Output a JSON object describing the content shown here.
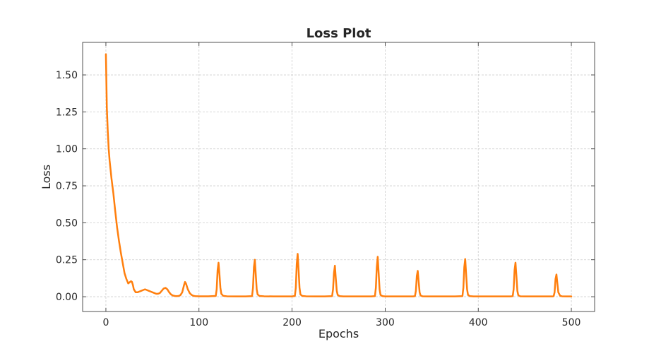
{
  "chart_data": {
    "type": "line",
    "title": "Loss Plot",
    "xlabel": "Epochs",
    "ylabel": "Loss",
    "xlim": [
      -25,
      525
    ],
    "ylim": [
      -0.1,
      1.72
    ],
    "xticks": [
      0,
      100,
      200,
      300,
      400,
      500
    ],
    "xtick_labels": [
      "0",
      "100",
      "200",
      "300",
      "400",
      "500"
    ],
    "yticks": [
      0.0,
      0.25,
      0.5,
      0.75,
      1.0,
      1.25,
      1.5
    ],
    "ytick_labels": [
      "0.00",
      "0.25",
      "0.50",
      "0.75",
      "1.00",
      "1.25",
      "1.50"
    ],
    "grid": true,
    "series": [
      {
        "color": "#ff7f0e",
        "x": [
          0,
          1,
          2,
          3,
          4,
          5,
          6,
          8,
          10,
          12,
          14,
          16,
          18,
          20,
          22,
          24,
          26,
          27,
          28,
          29,
          30,
          32,
          34,
          36,
          38,
          40,
          42,
          44,
          46,
          48,
          50,
          52,
          54,
          56,
          58,
          60,
          62,
          64,
          66,
          68,
          70,
          72,
          74,
          76,
          78,
          80,
          82,
          84,
          85,
          86,
          88,
          90,
          92,
          94,
          96,
          100,
          110,
          118,
          119,
          120,
          121,
          122,
          123,
          124,
          126,
          130,
          140,
          150,
          157,
          158,
          159,
          160,
          161,
          162,
          163,
          165,
          170,
          180,
          190,
          200,
          203,
          204,
          205,
          206,
          207,
          208,
          209,
          211,
          215,
          225,
          235,
          243,
          244,
          245,
          246,
          247,
          248,
          249,
          251,
          255,
          265,
          275,
          285,
          289,
          290,
          291,
          292,
          293,
          294,
          295,
          297,
          300,
          310,
          320,
          330,
          332,
          333,
          334,
          335,
          336,
          337,
          338,
          340,
          345,
          355,
          365,
          375,
          383,
          384,
          385,
          386,
          387,
          388,
          389,
          391,
          395,
          405,
          415,
          425,
          435,
          437,
          438,
          439,
          440,
          441,
          442,
          443,
          445,
          450,
          460,
          470,
          480,
          481,
          482,
          483,
          484,
          485,
          486,
          488,
          490,
          495,
          500
        ],
        "y": [
          1.64,
          1.28,
          1.12,
          1.0,
          0.92,
          0.86,
          0.8,
          0.7,
          0.58,
          0.47,
          0.38,
          0.3,
          0.23,
          0.16,
          0.12,
          0.09,
          0.1,
          0.105,
          0.1,
          0.08,
          0.05,
          0.03,
          0.03,
          0.035,
          0.04,
          0.045,
          0.05,
          0.045,
          0.04,
          0.035,
          0.03,
          0.025,
          0.02,
          0.02,
          0.025,
          0.04,
          0.055,
          0.06,
          0.05,
          0.03,
          0.015,
          0.008,
          0.005,
          0.004,
          0.005,
          0.01,
          0.03,
          0.08,
          0.1,
          0.09,
          0.05,
          0.025,
          0.012,
          0.006,
          0.004,
          0.003,
          0.003,
          0.005,
          0.05,
          0.18,
          0.23,
          0.15,
          0.06,
          0.02,
          0.006,
          0.003,
          0.002,
          0.002,
          0.004,
          0.06,
          0.2,
          0.25,
          0.15,
          0.05,
          0.015,
          0.005,
          0.003,
          0.002,
          0.002,
          0.002,
          0.005,
          0.06,
          0.22,
          0.29,
          0.18,
          0.06,
          0.015,
          0.005,
          0.003,
          0.002,
          0.002,
          0.004,
          0.05,
          0.16,
          0.21,
          0.12,
          0.04,
          0.012,
          0.004,
          0.002,
          0.002,
          0.002,
          0.002,
          0.004,
          0.06,
          0.2,
          0.27,
          0.16,
          0.05,
          0.012,
          0.004,
          0.002,
          0.002,
          0.002,
          0.002,
          0.004,
          0.04,
          0.14,
          0.175,
          0.1,
          0.03,
          0.008,
          0.003,
          0.002,
          0.002,
          0.002,
          0.002,
          0.004,
          0.06,
          0.2,
          0.255,
          0.15,
          0.05,
          0.012,
          0.004,
          0.002,
          0.002,
          0.002,
          0.002,
          0.002,
          0.004,
          0.05,
          0.18,
          0.23,
          0.14,
          0.04,
          0.01,
          0.003,
          0.002,
          0.002,
          0.002,
          0.002,
          0.004,
          0.03,
          0.12,
          0.15,
          0.09,
          0.03,
          0.006,
          0.003,
          0.002,
          0.002
        ]
      }
    ]
  }
}
